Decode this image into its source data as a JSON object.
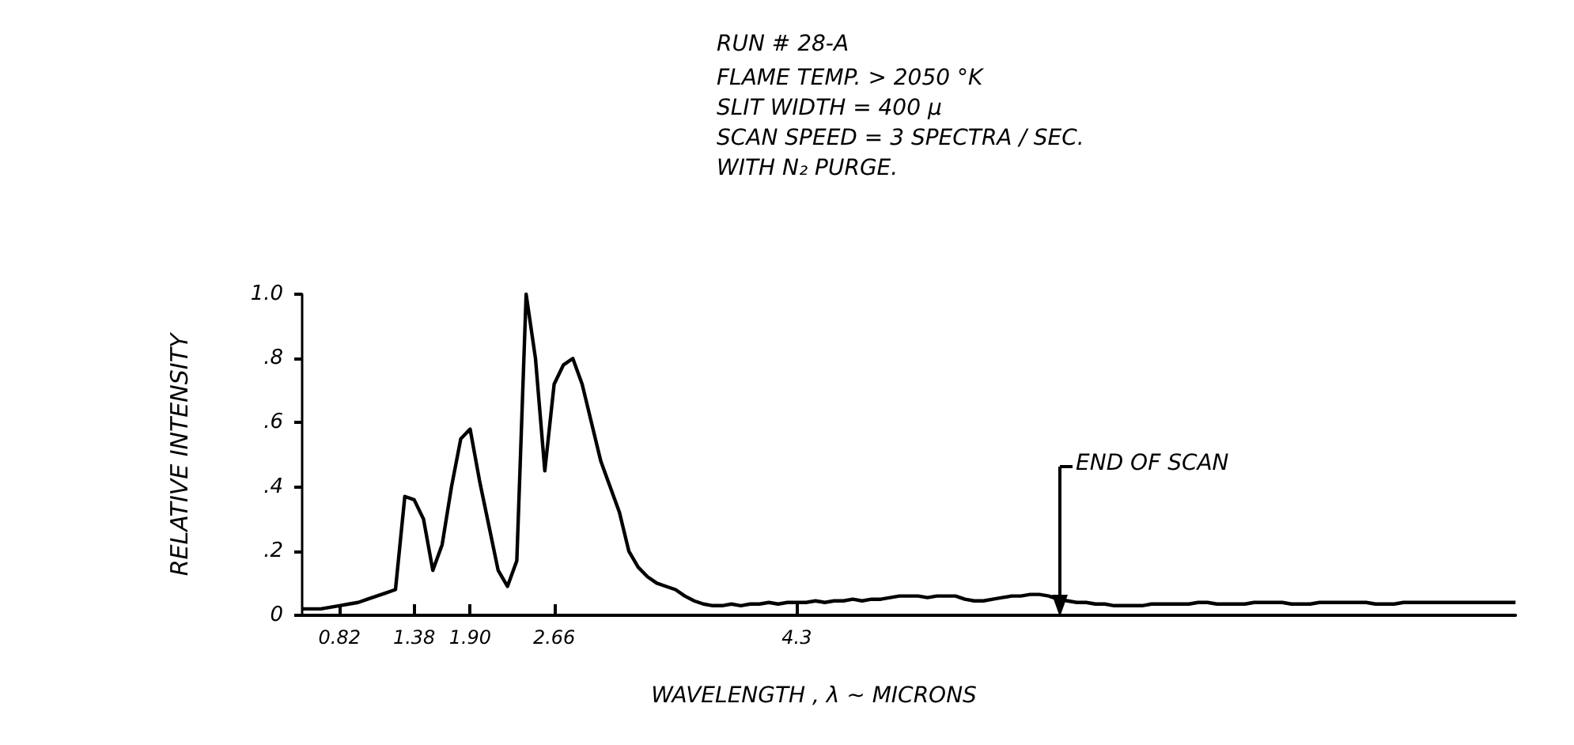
{
  "chart_data": {
    "type": "line",
    "title": "RUN # 28-A",
    "subtitle": "FLAME TEMP. > 2050 °K\nSLIT WIDTH = 400 µ\nSCAN SPEED = 3 SPECTRA / SEC.\nWITH N₂ PURGE.",
    "xlabel": "WAVELENGTH , λ ~ MICRONS",
    "ylabel": "RELATIVE INTENSITY",
    "annotations": [
      "END OF SCAN"
    ],
    "categories": [
      null,
      null,
      null,
      null,
      "0.82",
      null,
      null,
      null,
      null,
      null,
      null,
      null,
      "1.38",
      null,
      null,
      null,
      null,
      null,
      "1.90",
      null,
      null,
      null,
      null,
      null,
      null,
      null,
      null,
      "2.66",
      null,
      null,
      null,
      null,
      null,
      null,
      null,
      null,
      null,
      null,
      null,
      null,
      null,
      null,
      null,
      null,
      null,
      null,
      null,
      null,
      null,
      null,
      null,
      null,
      null,
      "4.3",
      null,
      null,
      null,
      null,
      null,
      null,
      null,
      null,
      null,
      null,
      null,
      null,
      null,
      null,
      null,
      null,
      null,
      null,
      null,
      null,
      null,
      null,
      null,
      null,
      null,
      null,
      null,
      null,
      null,
      null,
      null,
      null,
      null,
      null,
      null,
      null,
      null,
      null,
      null,
      null,
      null,
      null,
      null,
      null,
      null,
      null,
      null,
      null,
      null,
      null,
      null,
      null,
      null,
      null,
      null,
      null,
      null,
      null,
      null,
      null,
      null,
      null,
      null,
      null,
      null,
      null,
      null,
      null,
      null,
      null,
      null,
      null,
      null,
      null,
      null,
      null,
      null
    ],
    "series": [
      {
        "color": "#000000",
        "values": [
          0.02,
          0.02,
          0.02,
          0.025,
          0.03,
          0.035,
          0.04,
          0.05,
          0.06,
          0.07,
          0.08,
          0.37,
          0.36,
          0.3,
          0.14,
          0.22,
          0.4,
          0.55,
          0.58,
          0.42,
          0.28,
          0.14,
          0.09,
          0.17,
          1.0,
          0.8,
          0.45,
          0.72,
          0.78,
          0.8,
          0.72,
          0.6,
          0.48,
          0.4,
          0.32,
          0.2,
          0.15,
          0.12,
          0.1,
          0.09,
          0.08,
          0.06,
          0.045,
          0.035,
          0.03,
          0.03,
          0.035,
          0.03,
          0.035,
          0.035,
          0.04,
          0.035,
          0.04,
          0.04,
          0.04,
          0.045,
          0.04,
          0.045,
          0.045,
          0.05,
          0.045,
          0.05,
          0.05,
          0.055,
          0.06,
          0.06,
          0.06,
          0.055,
          0.06,
          0.06,
          0.06,
          0.05,
          0.045,
          0.045,
          0.05,
          0.055,
          0.06,
          0.06,
          0.065,
          0.065,
          0.06,
          0.05,
          0.045,
          0.04,
          0.04,
          0.035,
          0.035,
          0.03,
          0.03,
          0.03,
          0.03,
          0.035,
          0.035,
          0.035,
          0.035,
          0.035,
          0.04,
          0.04,
          0.035,
          0.035,
          0.035,
          0.035,
          0.04,
          0.04,
          0.04,
          0.04,
          0.035,
          0.035,
          0.035,
          0.04,
          0.04,
          0.04,
          0.04,
          0.04,
          0.04,
          0.035,
          0.035,
          0.035,
          0.04,
          0.04,
          0.04,
          0.04,
          0.04,
          0.04,
          0.04,
          0.04,
          0.04,
          0.04,
          0.04,
          0.04,
          0.04
        ]
      }
    ],
    "ylim": [
      0,
      1.0
    ],
    "yticks": [
      {
        "value": 0,
        "label": "0"
      },
      {
        "value": 0.2,
        "label": ".2"
      },
      {
        "value": 0.4,
        "label": ".4"
      },
      {
        "value": 0.6,
        "label": ".6"
      },
      {
        "value": 0.8,
        "label": ".8"
      },
      {
        "value": 1.0,
        "label": "1.0"
      }
    ],
    "grid": false,
    "marker": "none",
    "line_style": "solid"
  }
}
